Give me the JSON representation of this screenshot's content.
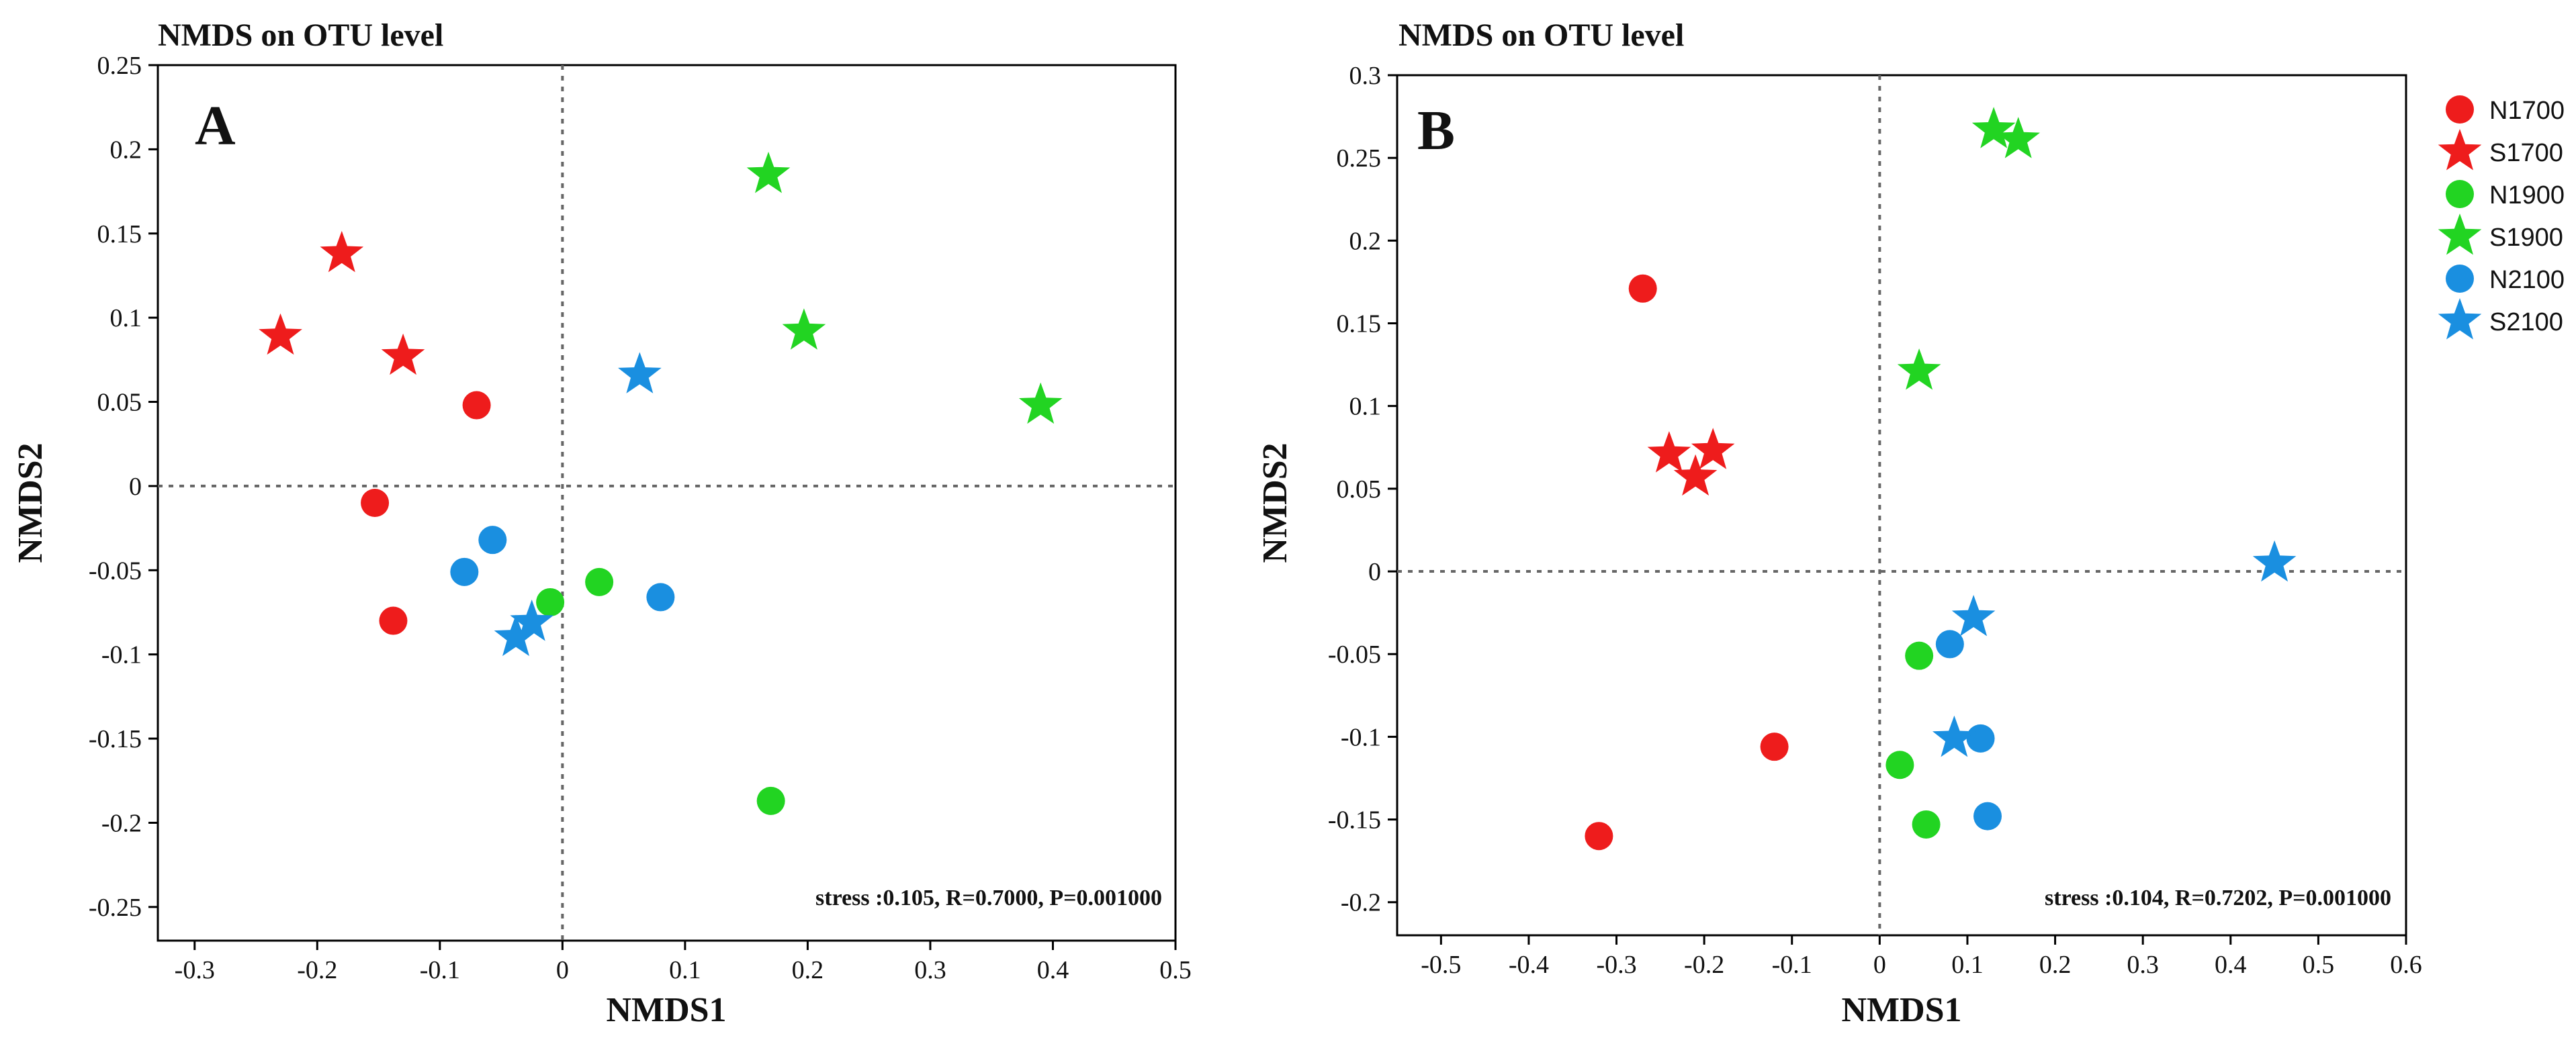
{
  "chart_data": [
    {
      "type": "scatter",
      "panel_label": "A",
      "title": "NMDS on OTU level",
      "xlabel": "NMDS1",
      "ylabel": "NMDS2",
      "xlim": [
        -0.33,
        0.5
      ],
      "ylim": [
        -0.27,
        0.25
      ],
      "xticks": [
        -0.3,
        -0.2,
        -0.1,
        0,
        0.1,
        0.2,
        0.3,
        0.4,
        0.5
      ],
      "xtick_labels": [
        "-0.3",
        "-0.2",
        "-0.1",
        "0",
        "0.1",
        "0.2",
        "0.3",
        "0.4",
        "0.5"
      ],
      "yticks": [
        -0.25,
        -0.2,
        -0.15,
        -0.1,
        -0.05,
        0,
        0.05,
        0.1,
        0.15,
        0.2,
        0.25
      ],
      "ytick_labels": [
        "-0.25",
        "-0.2",
        "-0.15",
        "-0.1",
        "-0.05",
        "0",
        "0.05",
        "0.1",
        "0.15",
        "0.2",
        "0.25"
      ],
      "reference_lines": {
        "x": 0,
        "y": 0
      },
      "annotation": "stress :0.105, R=0.7000, P=0.001000",
      "series": [
        {
          "name": "N1700",
          "color": "#ee1c1c",
          "marker": "circle",
          "points": [
            [
              -0.07,
              0.048
            ],
            [
              -0.153,
              -0.01
            ],
            [
              -0.138,
              -0.08
            ]
          ]
        },
        {
          "name": "S1700",
          "color": "#ee1c1c",
          "marker": "star",
          "points": [
            [
              -0.18,
              0.138
            ],
            [
              -0.23,
              0.089
            ],
            [
              -0.13,
              0.077
            ]
          ]
        },
        {
          "name": "N1900",
          "color": "#22d422",
          "marker": "circle",
          "points": [
            [
              -0.01,
              -0.069
            ],
            [
              0.03,
              -0.057
            ],
            [
              0.17,
              -0.187
            ]
          ]
        },
        {
          "name": "S1900",
          "color": "#22d422",
          "marker": "star",
          "points": [
            [
              0.168,
              0.185
            ],
            [
              0.197,
              0.092
            ],
            [
              0.39,
              0.048
            ]
          ]
        },
        {
          "name": "N2100",
          "color": "#1a8fe0",
          "marker": "circle",
          "points": [
            [
              -0.057,
              -0.032
            ],
            [
              -0.08,
              -0.051
            ],
            [
              0.08,
              -0.066
            ]
          ]
        },
        {
          "name": "S2100",
          "color": "#1a8fe0",
          "marker": "star",
          "points": [
            [
              0.063,
              0.066
            ],
            [
              -0.025,
              -0.081
            ],
            [
              -0.038,
              -0.09
            ]
          ]
        }
      ]
    },
    {
      "type": "scatter",
      "panel_label": "B",
      "title": "NMDS on OTU level",
      "xlabel": "NMDS1",
      "ylabel": "NMDS2",
      "xlim": [
        -0.55,
        0.6
      ],
      "ylim": [
        -0.22,
        0.3
      ],
      "xticks": [
        -0.5,
        -0.4,
        -0.3,
        -0.2,
        -0.1,
        0,
        0.1,
        0.2,
        0.3,
        0.4,
        0.5,
        0.6
      ],
      "xtick_labels": [
        "-0.5",
        "-0.4",
        "-0.3",
        "-0.2",
        "-0.1",
        "0",
        "0.1",
        "0.2",
        "0.3",
        "0.4",
        "0.5",
        "0.6"
      ],
      "yticks": [
        -0.2,
        -0.15,
        -0.1,
        -0.05,
        0,
        0.05,
        0.1,
        0.15,
        0.2,
        0.25,
        0.3
      ],
      "ytick_labels": [
        "-0.2",
        "-0.15",
        "-0.1",
        "-0.05",
        "0",
        "0.05",
        "0.1",
        "0.15",
        "0.2",
        "0.25",
        "0.3"
      ],
      "reference_lines": {
        "x": 0,
        "y": 0
      },
      "annotation": "stress :0.104, R=0.7202, P=0.001000",
      "legend_position": "right",
      "series": [
        {
          "name": "N1700",
          "color": "#ee1c1c",
          "marker": "circle",
          "points": [
            [
              -0.27,
              0.171
            ],
            [
              -0.12,
              -0.106
            ],
            [
              -0.32,
              -0.16
            ]
          ]
        },
        {
          "name": "S1700",
          "color": "#ee1c1c",
          "marker": "star",
          "points": [
            [
              -0.24,
              0.071
            ],
            [
              -0.19,
              0.073
            ],
            [
              -0.21,
              0.057
            ]
          ]
        },
        {
          "name": "N1900",
          "color": "#22d422",
          "marker": "circle",
          "points": [
            [
              0.045,
              -0.051
            ],
            [
              0.023,
              -0.117
            ],
            [
              0.053,
              -0.153
            ]
          ]
        },
        {
          "name": "S1900",
          "color": "#22d422",
          "marker": "star",
          "points": [
            [
              0.13,
              0.267
            ],
            [
              0.158,
              0.261
            ],
            [
              0.045,
              0.121
            ]
          ]
        },
        {
          "name": "N2100",
          "color": "#1a8fe0",
          "marker": "circle",
          "points": [
            [
              0.08,
              -0.044
            ],
            [
              0.115,
              -0.101
            ],
            [
              0.123,
              -0.148
            ]
          ]
        },
        {
          "name": "S2100",
          "color": "#1a8fe0",
          "marker": "star",
          "points": [
            [
              0.45,
              0.005
            ],
            [
              0.107,
              -0.028
            ],
            [
              0.085,
              -0.101
            ]
          ]
        }
      ]
    }
  ],
  "legend": [
    {
      "name": "N1700",
      "color": "#ee1c1c",
      "marker": "circle"
    },
    {
      "name": "S1700",
      "color": "#ee1c1c",
      "marker": "star"
    },
    {
      "name": "N1900",
      "color": "#22d422",
      "marker": "circle"
    },
    {
      "name": "S1900",
      "color": "#22d422",
      "marker": "star"
    },
    {
      "name": "N2100",
      "color": "#1a8fe0",
      "marker": "circle"
    },
    {
      "name": "S2100",
      "color": "#1a8fe0",
      "marker": "star"
    }
  ]
}
